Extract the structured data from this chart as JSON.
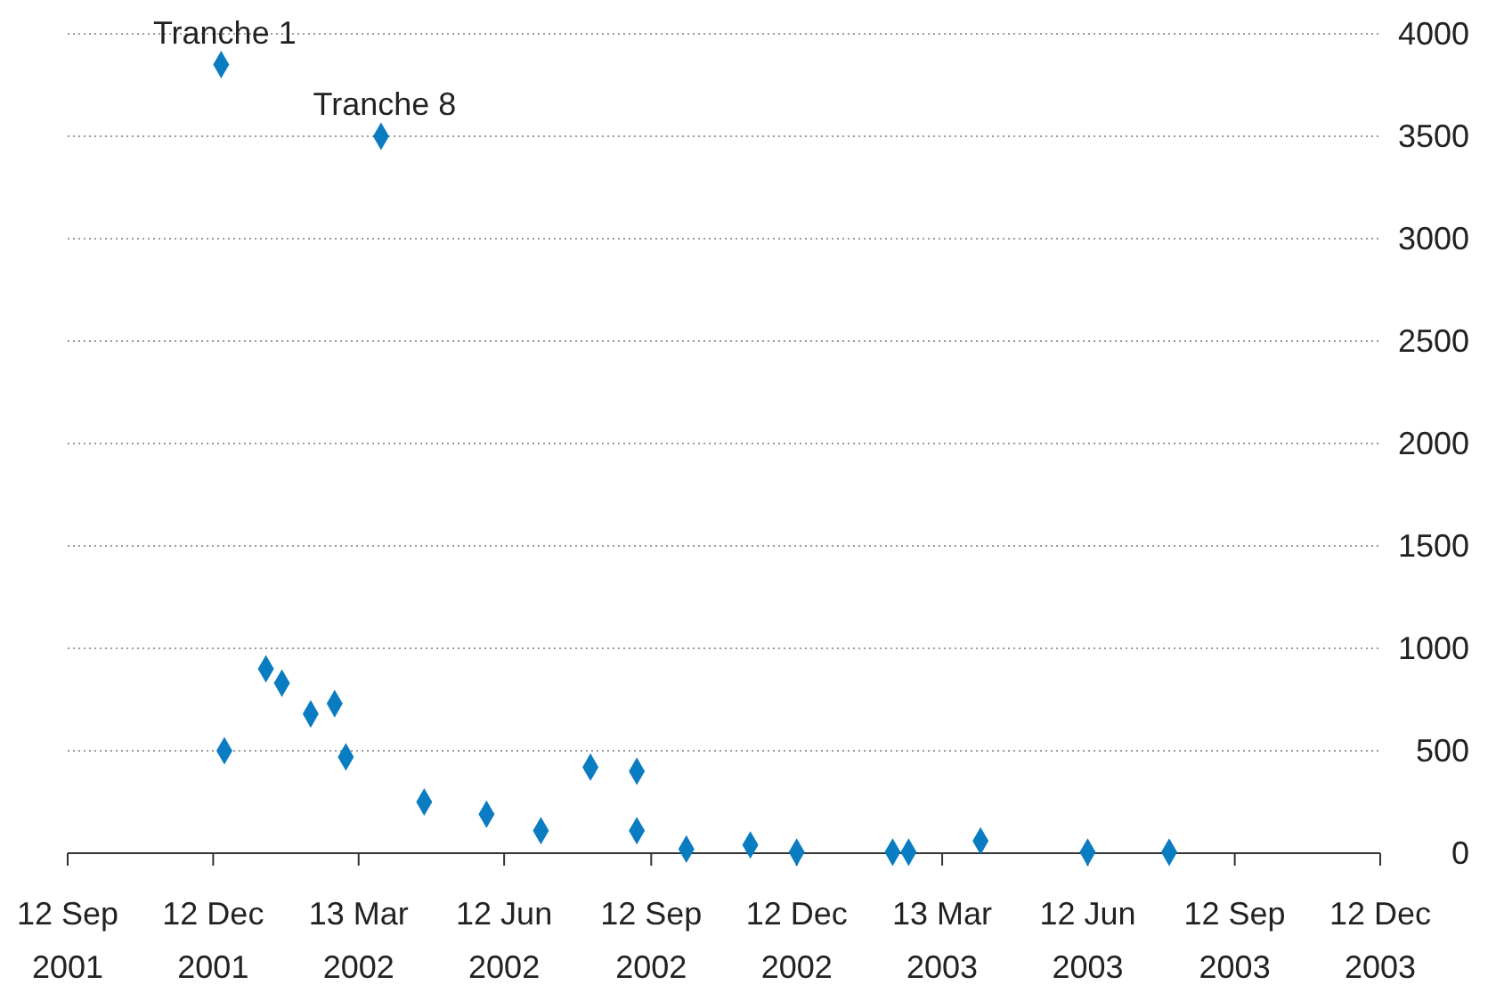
{
  "chart_data": {
    "type": "scatter",
    "marker": "diamond",
    "grid": "y",
    "x": [
      "2001-12-19",
      "2001-12-17",
      "2002-01-14",
      "2002-01-24",
      "2002-02-11",
      "2002-02-26",
      "2002-03-05",
      "2002-03-27",
      "2002-04-23",
      "2002-06-01",
      "2002-07-05",
      "2002-08-05",
      "2002-09-03",
      "2002-09-03",
      "2002-10-04",
      "2002-11-13",
      "2002-12-12",
      "2003-02-10",
      "2003-02-20",
      "2003-04-06",
      "2003-06-12",
      "2003-08-02"
    ],
    "series": [
      {
        "color": "#0a7cc1",
        "values": [
          500,
          3850,
          900,
          830,
          680,
          730,
          470,
          3500,
          250,
          190,
          110,
          420,
          400,
          110,
          20,
          40,
          5,
          5,
          5,
          60,
          5,
          5
        ]
      }
    ],
    "xlim": [
      "2001-09-12",
      "2003-12-12"
    ],
    "xticks": [
      {
        "value": "2001-09-12",
        "label": "12 Sep\n2001"
      },
      {
        "value": "2001-12-12",
        "label": "12 Dec\n2001"
      },
      {
        "value": "2002-03-13",
        "label": "13 Mar\n2002"
      },
      {
        "value": "2002-06-12",
        "label": "12 Jun\n2002"
      },
      {
        "value": "2002-09-12",
        "label": "12 Sep\n2002"
      },
      {
        "value": "2002-12-12",
        "label": "12 Dec\n2002"
      },
      {
        "value": "2003-03-13",
        "label": "13 Mar\n2003"
      },
      {
        "value": "2003-06-12",
        "label": "12 Jun\n2003"
      },
      {
        "value": "2003-09-12",
        "label": "12 Sep\n2003"
      },
      {
        "value": "2003-12-12",
        "label": "12 Dec\n2003"
      }
    ],
    "ylim": [
      0,
      4000
    ],
    "yticks": [
      0,
      500,
      1000,
      1500,
      2000,
      2500,
      3000,
      3500,
      4000
    ],
    "annotations": [
      {
        "text": "Tranche 1",
        "x": "2001-12-17",
        "y": 3850
      },
      {
        "text": "Tranche 8",
        "x": "2002-03-27",
        "y": 3500
      }
    ]
  }
}
